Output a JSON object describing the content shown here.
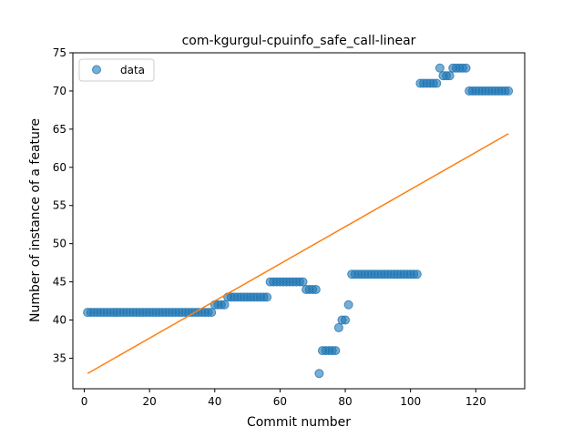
{
  "chart_data": {
    "type": "scatter",
    "title": "com-kgurgul-cpuinfo_safe_call-linear",
    "xlabel": "Commit number",
    "ylabel": "Number of instance of a feature",
    "xlim": [
      -3.5,
      135
    ],
    "ylim": [
      31,
      75
    ],
    "xticks": [
      0,
      20,
      40,
      60,
      80,
      100,
      120
    ],
    "yticks": [
      35,
      40,
      45,
      50,
      55,
      60,
      65,
      70,
      75
    ],
    "grid": false,
    "legend": {
      "placement": "top-left",
      "entries": [
        "data"
      ]
    },
    "series": [
      {
        "name": "data",
        "kind": "scatter",
        "color": "#1f77b4",
        "x": [
          1,
          2,
          3,
          4,
          5,
          6,
          7,
          8,
          9,
          10,
          11,
          12,
          13,
          14,
          15,
          16,
          17,
          18,
          19,
          20,
          21,
          22,
          23,
          24,
          25,
          26,
          27,
          28,
          29,
          30,
          31,
          32,
          33,
          34,
          35,
          36,
          37,
          38,
          39,
          40,
          41,
          42,
          43,
          44,
          45,
          46,
          47,
          48,
          49,
          50,
          51,
          52,
          53,
          54,
          55,
          56,
          57,
          58,
          59,
          60,
          61,
          62,
          63,
          64,
          65,
          66,
          67,
          68,
          69,
          70,
          71,
          72,
          73,
          74,
          75,
          76,
          77,
          78,
          79,
          80,
          81,
          82,
          83,
          84,
          85,
          86,
          87,
          88,
          89,
          90,
          91,
          92,
          93,
          94,
          95,
          96,
          97,
          98,
          99,
          100,
          101,
          102,
          103,
          104,
          105,
          106,
          107,
          108,
          109,
          110,
          111,
          112,
          113,
          114,
          115,
          116,
          117,
          118,
          119,
          120,
          121,
          122,
          123,
          124,
          125,
          126,
          127,
          128,
          129,
          130
        ],
        "y": [
          41,
          41,
          41,
          41,
          41,
          41,
          41,
          41,
          41,
          41,
          41,
          41,
          41,
          41,
          41,
          41,
          41,
          41,
          41,
          41,
          41,
          41,
          41,
          41,
          41,
          41,
          41,
          41,
          41,
          41,
          41,
          41,
          41,
          41,
          41,
          41,
          41,
          41,
          41,
          42,
          42,
          42,
          42,
          43,
          43,
          43,
          43,
          43,
          43,
          43,
          43,
          43,
          43,
          43,
          43,
          43,
          45,
          45,
          45,
          45,
          45,
          45,
          45,
          45,
          45,
          45,
          45,
          44,
          44,
          44,
          44,
          33,
          36,
          36,
          36,
          36,
          36,
          39,
          40,
          40,
          42,
          46,
          46,
          46,
          46,
          46,
          46,
          46,
          46,
          46,
          46,
          46,
          46,
          46,
          46,
          46,
          46,
          46,
          46,
          46,
          46,
          46,
          71,
          71,
          71,
          71,
          71,
          71,
          73,
          72,
          72,
          72,
          73,
          73,
          73,
          73,
          73,
          70,
          70,
          70,
          70,
          70,
          70,
          70,
          70,
          70,
          70,
          70,
          70,
          70
        ]
      },
      {
        "name": "",
        "kind": "line",
        "color": "#ff7f0e",
        "x": [
          1,
          130
        ],
        "y": [
          33.0,
          64.4
        ]
      }
    ]
  }
}
